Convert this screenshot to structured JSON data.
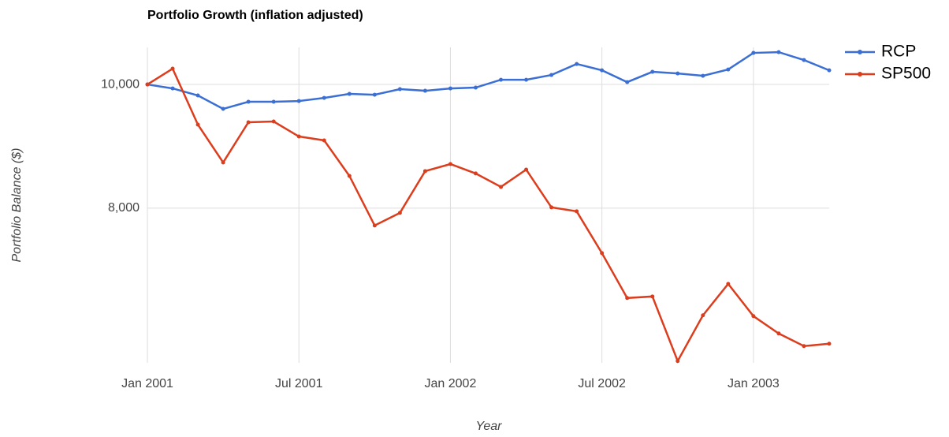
{
  "chart_data": {
    "type": "line",
    "title": "Portfolio Growth (inflation adjusted)",
    "x_label": "Year",
    "y_label": "Portfolio Balance ($)",
    "x": [
      "2001-01",
      "2001-02",
      "2001-03",
      "2001-04",
      "2001-05",
      "2001-06",
      "2001-07",
      "2001-08",
      "2001-09",
      "2001-10",
      "2001-11",
      "2001-12",
      "2002-01",
      "2002-02",
      "2002-03",
      "2002-04",
      "2002-05",
      "2002-06",
      "2002-07",
      "2002-08",
      "2002-09",
      "2002-10",
      "2002-11",
      "2002-12",
      "2003-01",
      "2003-02",
      "2003-03",
      "2003-04"
    ],
    "series": [
      {
        "name": "RCP",
        "color": "#3b6fd4",
        "values": [
          10000,
          9936,
          9822,
          9605,
          9720,
          9720,
          9732,
          9783,
          9847,
          9834,
          9924,
          9898,
          9936,
          9949,
          10076,
          10076,
          10153,
          10331,
          10229,
          10038,
          10204,
          10178,
          10140,
          10242,
          10510,
          10522,
          10395,
          10229
        ]
      },
      {
        "name": "SP500",
        "color": "#dc3d1c",
        "values": [
          10000,
          10255,
          9350,
          8739,
          9389,
          9401,
          9159,
          9096,
          8522,
          7720,
          7924,
          8599,
          8713,
          8561,
          8344,
          8624,
          8013,
          7949,
          7274,
          6548,
          6573,
          5529,
          6268,
          6777,
          6255,
          5975,
          5771,
          5809
        ]
      }
    ],
    "xlim": [
      "2001-01",
      "2003-04"
    ],
    "xticks": [
      {
        "value": "2001-01",
        "label": "Jan 2001"
      },
      {
        "value": "2001-07",
        "label": "Jul 2001"
      },
      {
        "value": "2002-01",
        "label": "Jan 2002"
      },
      {
        "value": "2002-07",
        "label": "Jul 2002"
      },
      {
        "value": "2003-01",
        "label": "Jan 2003"
      }
    ],
    "ylim": [
      5500,
      10600
    ],
    "yticks": [
      {
        "value": 8000,
        "label": "8,000"
      },
      {
        "value": 10000,
        "label": "10,000"
      }
    ],
    "grid": true,
    "legend": "right"
  }
}
